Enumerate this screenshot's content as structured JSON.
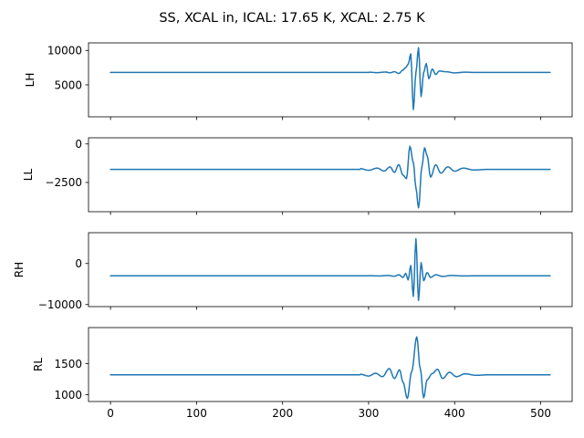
{
  "figure": {
    "title": "SS, XCAL in, ICAL: 17.65 K, XCAL: 2.75 K",
    "line_color": "#1f77b4"
  },
  "chart_data": [
    {
      "type": "line",
      "ylabel": "LH",
      "xlim": [
        -25.55,
        536.55
      ],
      "ylim": [
        350,
        11100
      ],
      "yticks": [
        5000,
        10000
      ],
      "xticks": [
        0,
        100,
        200,
        300,
        400,
        500
      ],
      "show_xticklabels": false,
      "baseline": 6800,
      "wave": [
        [
          300,
          40
        ],
        [
          310,
          -30
        ],
        [
          320,
          60
        ],
        [
          325,
          -50
        ],
        [
          330,
          110
        ],
        [
          335,
          -150
        ],
        [
          340,
          350
        ],
        [
          343,
          700
        ],
        [
          346,
          1200
        ],
        [
          349,
          2700
        ],
        [
          352,
          -5400
        ],
        [
          355,
          0
        ],
        [
          358,
          3600
        ],
        [
          361,
          -3500
        ],
        [
          364,
          0
        ],
        [
          367,
          1300
        ],
        [
          370,
          -900
        ],
        [
          374,
          500
        ],
        [
          378,
          -300
        ],
        [
          382,
          200
        ],
        [
          390,
          100
        ],
        [
          400,
          -60
        ],
        [
          412,
          40
        ],
        [
          425,
          0
        ]
      ]
    },
    {
      "type": "line",
      "ylabel": "LL",
      "xlim": [
        -25.55,
        536.55
      ],
      "ylim": [
        -4400,
        400
      ],
      "yticks": [
        -2500,
        0
      ],
      "xticks": [
        0,
        100,
        200,
        300,
        400,
        500
      ],
      "show_xticklabels": false,
      "baseline": -1650,
      "wave": [
        [
          290,
          50
        ],
        [
          300,
          -60
        ],
        [
          310,
          80
        ],
        [
          318,
          -110
        ],
        [
          325,
          160
        ],
        [
          330,
          -200
        ],
        [
          335,
          310
        ],
        [
          340,
          -380
        ],
        [
          344,
          -600
        ],
        [
          348,
          1500
        ],
        [
          352,
          450
        ],
        [
          355,
          -1200
        ],
        [
          358,
          -2500
        ],
        [
          362,
          200
        ],
        [
          365,
          1400
        ],
        [
          368,
          900
        ],
        [
          372,
          -500
        ],
        [
          378,
          300
        ],
        [
          384,
          -250
        ],
        [
          392,
          160
        ],
        [
          400,
          -120
        ],
        [
          410,
          80
        ],
        [
          422,
          -40
        ],
        [
          440,
          0
        ]
      ]
    },
    {
      "type": "line",
      "ylabel": "RH",
      "xlim": [
        -25.55,
        536.55
      ],
      "ylim": [
        -10500,
        7500
      ],
      "yticks": [
        -10000,
        0
      ],
      "xticks": [
        0,
        100,
        200,
        300,
        400,
        500
      ],
      "show_xticklabels": false,
      "baseline": -3000,
      "wave": [
        [
          300,
          40
        ],
        [
          312,
          -40
        ],
        [
          322,
          80
        ],
        [
          330,
          -100
        ],
        [
          335,
          250
        ],
        [
          340,
          -400
        ],
        [
          343,
          600
        ],
        [
          346,
          -1000
        ],
        [
          349,
          2500
        ],
        [
          352,
          -5000
        ],
        [
          355,
          9000
        ],
        [
          358,
          -6000
        ],
        [
          361,
          3200
        ],
        [
          364,
          -1200
        ],
        [
          368,
          800
        ],
        [
          372,
          -400
        ],
        [
          378,
          250
        ],
        [
          386,
          -150
        ],
        [
          396,
          80
        ],
        [
          410,
          -40
        ],
        [
          425,
          0
        ]
      ]
    },
    {
      "type": "line",
      "ylabel": "RL",
      "xlim": [
        -25.55,
        536.55
      ],
      "ylim": [
        890,
        2080
      ],
      "yticks": [
        1000,
        1500
      ],
      "xticks": [
        0,
        100,
        200,
        300,
        400,
        500
      ],
      "show_xticklabels": true,
      "baseline": 1320,
      "wave": [
        [
          290,
          10
        ],
        [
          300,
          -20
        ],
        [
          308,
          25
        ],
        [
          316,
          -30
        ],
        [
          324,
          100
        ],
        [
          330,
          -60
        ],
        [
          336,
          80
        ],
        [
          340,
          -120
        ],
        [
          345,
          -380
        ],
        [
          350,
          50
        ],
        [
          356,
          610
        ],
        [
          360,
          100
        ],
        [
          364,
          -370
        ],
        [
          368,
          -80
        ],
        [
          374,
          20
        ],
        [
          380,
          90
        ],
        [
          386,
          -60
        ],
        [
          394,
          40
        ],
        [
          402,
          -30
        ],
        [
          412,
          15
        ],
        [
          425,
          -8
        ],
        [
          440,
          0
        ]
      ]
    }
  ]
}
